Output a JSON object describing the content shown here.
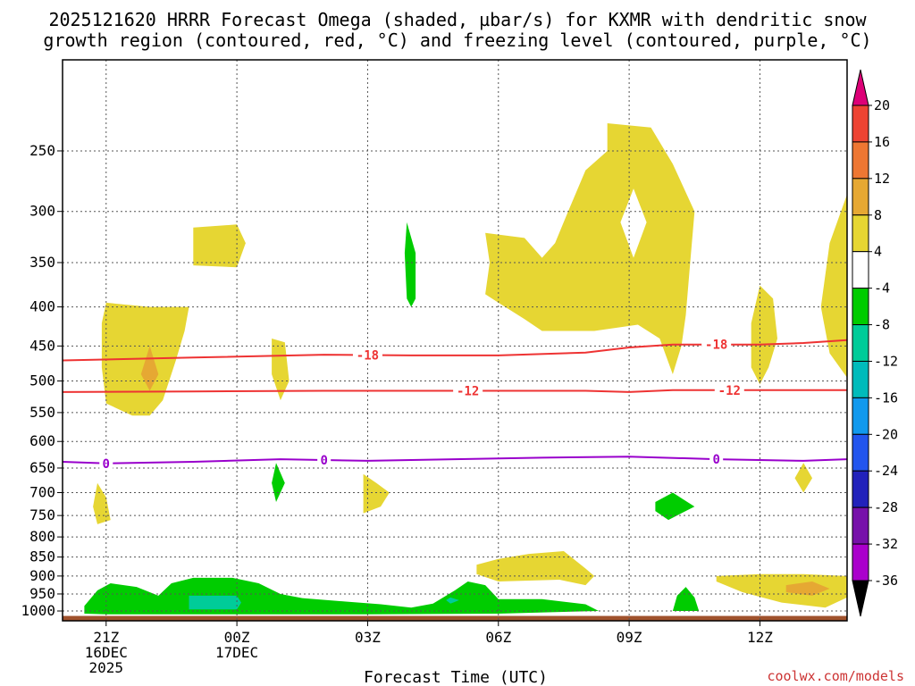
{
  "chart_data": {
    "type": "time-height contour",
    "title_line1": "2025121620 HRRR Forecast Omega (shaded, µbar/s) for KXMR with dendritic snow",
    "title_line2": "growth region (contoured, red, °C) and freezing level (contoured, purple, °C)",
    "xlabel": "Forecast Time (UTC)",
    "credit": "coolwx.com/models",
    "x_ticks": [
      {
        "hour": 1,
        "lines": [
          "21Z",
          "16DEC",
          "2025"
        ]
      },
      {
        "hour": 4,
        "lines": [
          "00Z",
          "17DEC"
        ]
      },
      {
        "hour": 7,
        "lines": [
          "03Z"
        ]
      },
      {
        "hour": 10,
        "lines": [
          "06Z"
        ]
      },
      {
        "hour": 13,
        "lines": [
          "09Z"
        ]
      },
      {
        "hour": 16,
        "lines": [
          "12Z"
        ]
      }
    ],
    "xlim": [
      0,
      18
    ],
    "ylim": [
      1030,
      190
    ],
    "y_ticks": [
      250,
      300,
      350,
      400,
      450,
      500,
      550,
      600,
      650,
      700,
      750,
      800,
      850,
      900,
      950,
      1000
    ],
    "ground_level_hpa": 1015,
    "colors": {
      "dsg_contour": "#ee3333",
      "freezing_contour": "#9900cc",
      "ground": "#a0522d",
      "omega_4_8": "#e6d633",
      "omega_8_12": "#e6a833",
      "omega_m4_m8": "#00cc00",
      "omega_m8_m12": "#00cc99"
    },
    "contours": [
      {
        "name": "dsg-minus18",
        "label": "-18",
        "color": "#ee3333",
        "points": [
          [
            0,
            470
          ],
          [
            3,
            466
          ],
          [
            6,
            462
          ],
          [
            8,
            463
          ],
          [
            10,
            463
          ],
          [
            12,
            459
          ],
          [
            13,
            452
          ],
          [
            14,
            448
          ],
          [
            16,
            448
          ],
          [
            17,
            446
          ],
          [
            18,
            442
          ]
        ],
        "label_hours": [
          7,
          15
        ]
      },
      {
        "name": "dsg-minus12",
        "label": "-12",
        "color": "#ee3333",
        "points": [
          [
            0,
            517
          ],
          [
            3,
            516
          ],
          [
            6,
            515
          ],
          [
            9,
            515
          ],
          [
            12,
            515
          ],
          [
            13,
            517
          ],
          [
            14,
            514
          ],
          [
            16,
            514
          ],
          [
            18,
            514
          ]
        ],
        "label_hours": [
          9.3,
          15.3
        ]
      },
      {
        "name": "freezing-level",
        "label": "0",
        "color": "#9900cc",
        "points": [
          [
            0,
            638
          ],
          [
            1,
            641
          ],
          [
            3,
            638
          ],
          [
            5,
            633
          ],
          [
            7,
            636
          ],
          [
            9,
            633
          ],
          [
            11,
            630
          ],
          [
            13,
            628
          ],
          [
            15,
            633
          ],
          [
            17,
            636
          ],
          [
            18,
            633
          ]
        ],
        "label_hours": [
          1,
          6,
          15
        ]
      }
    ],
    "omega_regions": [
      {
        "name": "upward-4to8",
        "color": "#e6d633",
        "points": [
          [
            1,
            395
          ],
          [
            2,
            400
          ],
          [
            2.9,
            400
          ],
          [
            2.8,
            430
          ],
          [
            2.6,
            470
          ],
          [
            2.3,
            530
          ],
          [
            2,
            555
          ],
          [
            1.6,
            555
          ],
          [
            1,
            535
          ],
          [
            0.9,
            480
          ],
          [
            0.9,
            420
          ]
        ]
      },
      {
        "name": "upward-8to12",
        "color": "#e6a833",
        "points": [
          [
            2,
            450
          ],
          [
            2.2,
            490
          ],
          [
            2,
            515
          ],
          [
            1.8,
            490
          ]
        ]
      },
      {
        "name": "upward-4to8",
        "color": "#e6d633",
        "points": [
          [
            3,
            315
          ],
          [
            4,
            312
          ],
          [
            4.2,
            330
          ],
          [
            4,
            355
          ],
          [
            3,
            353
          ]
        ]
      },
      {
        "name": "upward-4to8",
        "color": "#e6d633",
        "points": [
          [
            4.8,
            440
          ],
          [
            5.1,
            445
          ],
          [
            5.2,
            500
          ],
          [
            5,
            530
          ],
          [
            4.8,
            490
          ]
        ]
      },
      {
        "name": "downward-4to8",
        "color": "#00cc00",
        "points": [
          [
            7.9,
            310
          ],
          [
            8.1,
            340
          ],
          [
            8.1,
            390
          ],
          [
            8,
            400
          ],
          [
            7.9,
            390
          ],
          [
            7.85,
            340
          ]
        ]
      },
      {
        "name": "upward-4to8",
        "color": "#e6d633",
        "points": [
          [
            9.7,
            320
          ],
          [
            10.6,
            325
          ],
          [
            11,
            345
          ],
          [
            11.3,
            330
          ],
          [
            11.6,
            300
          ],
          [
            12,
            265
          ],
          [
            12.5,
            250
          ],
          [
            12.5,
            230
          ],
          [
            13.5,
            233
          ],
          [
            14,
            260
          ],
          [
            14.5,
            300
          ],
          [
            14.4,
            350
          ],
          [
            14.3,
            410
          ],
          [
            14.2,
            450
          ],
          [
            14,
            490
          ],
          [
            13.7,
            440
          ],
          [
            13.2,
            422
          ],
          [
            12.2,
            430
          ],
          [
            11,
            430
          ],
          [
            10.6,
            415
          ],
          [
            10,
            395
          ],
          [
            9.7,
            385
          ],
          [
            9.8,
            350
          ]
        ]
      },
      {
        "name": "upward-gap",
        "color": "#ffffff",
        "points": [
          [
            13.1,
            280
          ],
          [
            13.4,
            310
          ],
          [
            13.1,
            345
          ],
          [
            12.8,
            310
          ]
        ]
      },
      {
        "name": "upward-4to8",
        "color": "#e6d633",
        "points": [
          [
            16,
            375
          ],
          [
            16.3,
            390
          ],
          [
            16.4,
            440
          ],
          [
            16.2,
            480
          ],
          [
            16,
            505
          ],
          [
            15.8,
            480
          ],
          [
            15.8,
            420
          ]
        ]
      },
      {
        "name": "upward-4to8",
        "color": "#e6d633",
        "points": [
          [
            18,
            285
          ],
          [
            18,
            495
          ],
          [
            17.6,
            460
          ],
          [
            17.4,
            400
          ],
          [
            17.6,
            330
          ]
        ]
      },
      {
        "name": "downward-4to8",
        "color": "#00cc00",
        "points": [
          [
            4.9,
            640
          ],
          [
            5.1,
            680
          ],
          [
            4.9,
            720
          ],
          [
            4.8,
            680
          ]
        ]
      },
      {
        "name": "upward-4to8",
        "color": "#e6d633",
        "points": [
          [
            6.9,
            662
          ],
          [
            7.2,
            680
          ],
          [
            7.5,
            700
          ],
          [
            7.3,
            730
          ],
          [
            6.9,
            745
          ],
          [
            6.9,
            700
          ]
        ]
      },
      {
        "name": "upward-4to8",
        "color": "#e6d633",
        "points": [
          [
            17,
            640
          ],
          [
            17.2,
            670
          ],
          [
            17,
            700
          ],
          [
            16.8,
            670
          ]
        ]
      },
      {
        "name": "upward-4to8",
        "color": "#e6d633",
        "points": [
          [
            0.8,
            680
          ],
          [
            1,
            710
          ],
          [
            1.1,
            760
          ],
          [
            0.8,
            770
          ],
          [
            0.7,
            730
          ]
        ]
      },
      {
        "name": "downward-4to8",
        "color": "#00cc00",
        "points": [
          [
            13.6,
            720
          ],
          [
            14,
            700
          ],
          [
            14.5,
            730
          ],
          [
            13.9,
            760
          ],
          [
            13.6,
            740
          ]
        ]
      },
      {
        "name": "upward-4to8",
        "color": "#e6d633",
        "points": [
          [
            9.5,
            870
          ],
          [
            10,
            855
          ],
          [
            10.7,
            842
          ],
          [
            11.5,
            835
          ],
          [
            12,
            880
          ],
          [
            12.2,
            900
          ],
          [
            12,
            925
          ],
          [
            11.4,
            910
          ],
          [
            10,
            915
          ],
          [
            9.5,
            895
          ]
        ]
      },
      {
        "name": "upward-4to8",
        "color": "#e6d633",
        "points": [
          [
            15,
            900
          ],
          [
            16,
            895
          ],
          [
            17,
            895
          ],
          [
            18,
            900
          ],
          [
            18,
            960
          ],
          [
            17.5,
            990
          ],
          [
            16.5,
            975
          ],
          [
            15.6,
            945
          ],
          [
            15,
            915
          ]
        ]
      },
      {
        "name": "upward-8to12",
        "color": "#e6a833",
        "points": [
          [
            16.6,
            925
          ],
          [
            17.2,
            915
          ],
          [
            17.6,
            935
          ],
          [
            17.2,
            955
          ],
          [
            16.6,
            945
          ]
        ]
      },
      {
        "name": "downward-4to8",
        "color": "#00cc00",
        "points": [
          [
            0.5,
            985
          ],
          [
            0.8,
            940
          ],
          [
            1.1,
            920
          ],
          [
            1.7,
            930
          ],
          [
            2.2,
            955
          ],
          [
            2.5,
            920
          ],
          [
            3,
            905
          ],
          [
            3.9,
            905
          ],
          [
            4.5,
            920
          ],
          [
            5,
            950
          ],
          [
            5.5,
            962
          ],
          [
            6.5,
            972
          ],
          [
            7.3,
            980
          ],
          [
            8,
            990
          ],
          [
            8.5,
            978
          ],
          [
            9,
            940
          ],
          [
            9.3,
            915
          ],
          [
            9.7,
            925
          ],
          [
            10,
            965
          ],
          [
            11,
            965
          ],
          [
            12,
            980
          ],
          [
            12.3,
            1000
          ],
          [
            10,
            1008
          ],
          [
            7,
            1010
          ],
          [
            4,
            1010
          ],
          [
            1,
            1010
          ],
          [
            0.5,
            1008
          ]
        ]
      },
      {
        "name": "downward-8to12",
        "color": "#00cc99",
        "points": [
          [
            2.9,
            955
          ],
          [
            4,
            955
          ],
          [
            4.1,
            975
          ],
          [
            4,
            995
          ],
          [
            2.9,
            995
          ]
        ]
      },
      {
        "name": "downward-8to12",
        "color": "#00cc99",
        "points": [
          [
            8.9,
            960
          ],
          [
            9.1,
            968
          ],
          [
            8.9,
            978
          ],
          [
            8.8,
            968
          ]
        ]
      },
      {
        "name": "downward-4to8",
        "color": "#00cc00",
        "points": [
          [
            14,
            1000
          ],
          [
            14.1,
            955
          ],
          [
            14.3,
            930
          ],
          [
            14.5,
            960
          ],
          [
            14.6,
            1000
          ]
        ]
      }
    ],
    "colorbar": {
      "labels": [
        "20",
        "16",
        "12",
        "8",
        "4",
        "-4",
        "-8",
        "-12",
        "-16",
        "-20",
        "-24",
        "-28",
        "-32",
        "-36"
      ],
      "colors": [
        "#ee2244",
        "#ee4433",
        "#ee7733",
        "#e6a833",
        "#e6d633",
        "#ffffff",
        "#00cc00",
        "#00cc99",
        "#00bbbb",
        "#1199ee",
        "#2255ee",
        "#2222bb",
        "#7711aa",
        "#aa00cc",
        "#aaaaaa"
      ],
      "top_arrow_color": "#dd0077",
      "bottom_arrow_color": "#000000"
    }
  }
}
